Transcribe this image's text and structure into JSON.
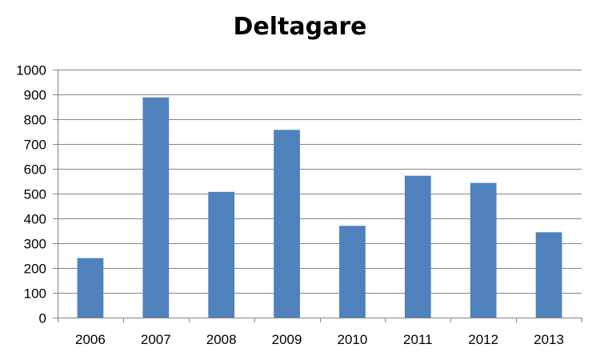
{
  "chart_data": {
    "type": "bar",
    "title": "Deltagare",
    "xlabel": "",
    "ylabel": "",
    "categories": [
      "2006",
      "2007",
      "2008",
      "2009",
      "2010",
      "2011",
      "2012",
      "2013"
    ],
    "series": [
      {
        "values": [
          240,
          888,
          507,
          757,
          370,
          572,
          543,
          344
        ]
      }
    ],
    "ylim": [
      0,
      1000
    ],
    "yticks": [
      0,
      100,
      200,
      300,
      400,
      500,
      600,
      700,
      800,
      900,
      1000
    ],
    "grid": true,
    "legend": "none",
    "colors": {
      "bar": "#4F81BD",
      "grid": "#868686",
      "axis": "#868686"
    }
  }
}
